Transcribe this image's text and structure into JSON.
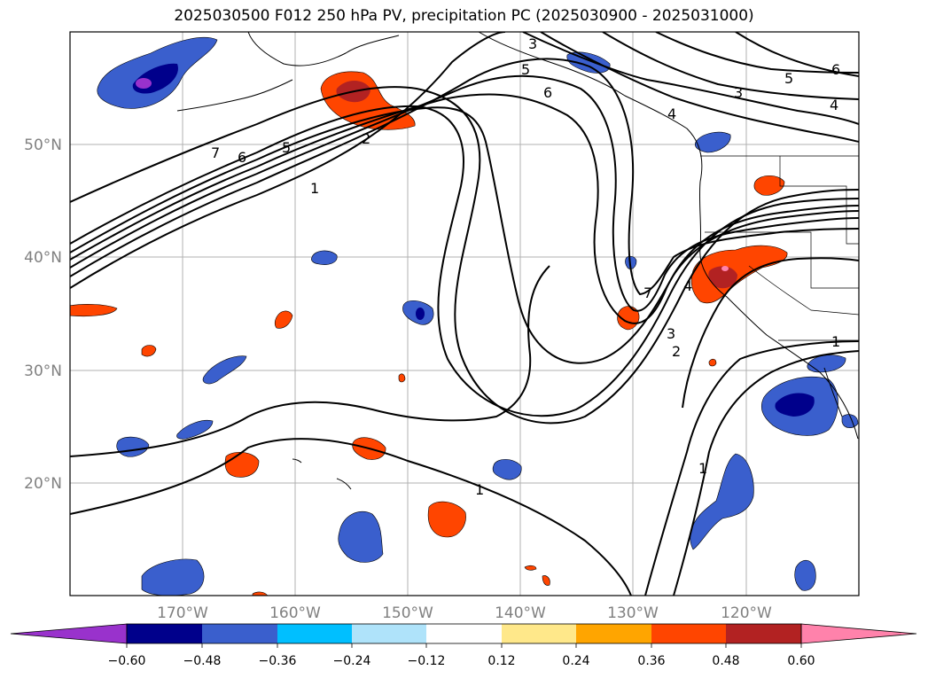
{
  "title": "2025030500 F012 250 hPa PV, precipitation PC (2025030900 - 2025031000)",
  "lat_labels": [
    "50°N",
    "40°N",
    "30°N",
    "20°N"
  ],
  "lon_labels": [
    "170°W",
    "160°W",
    "150°W",
    "140°W",
    "130°W",
    "120°W"
  ],
  "contour_labels": [
    "7",
    "6",
    "5",
    "2",
    "1",
    "3",
    "5",
    "6",
    "4",
    "3",
    "5",
    "6",
    "4",
    "7",
    "4",
    "3",
    "2",
    "1",
    "1",
    "1"
  ],
  "colorbar": {
    "colors": [
      "#9932cc",
      "#00008b",
      "#3a5fcd",
      "#00bfff",
      "#afe3fa",
      "#ffffff",
      "#ffe88a",
      "#ffa500",
      "#ff4500",
      "#b22222",
      "#ff82ab"
    ],
    "tick_labels": [
      "−0.60",
      "−0.48",
      "−0.36",
      "−0.24",
      "−0.12",
      "0.12",
      "0.24",
      "0.36",
      "0.48",
      "0.60"
    ]
  }
}
